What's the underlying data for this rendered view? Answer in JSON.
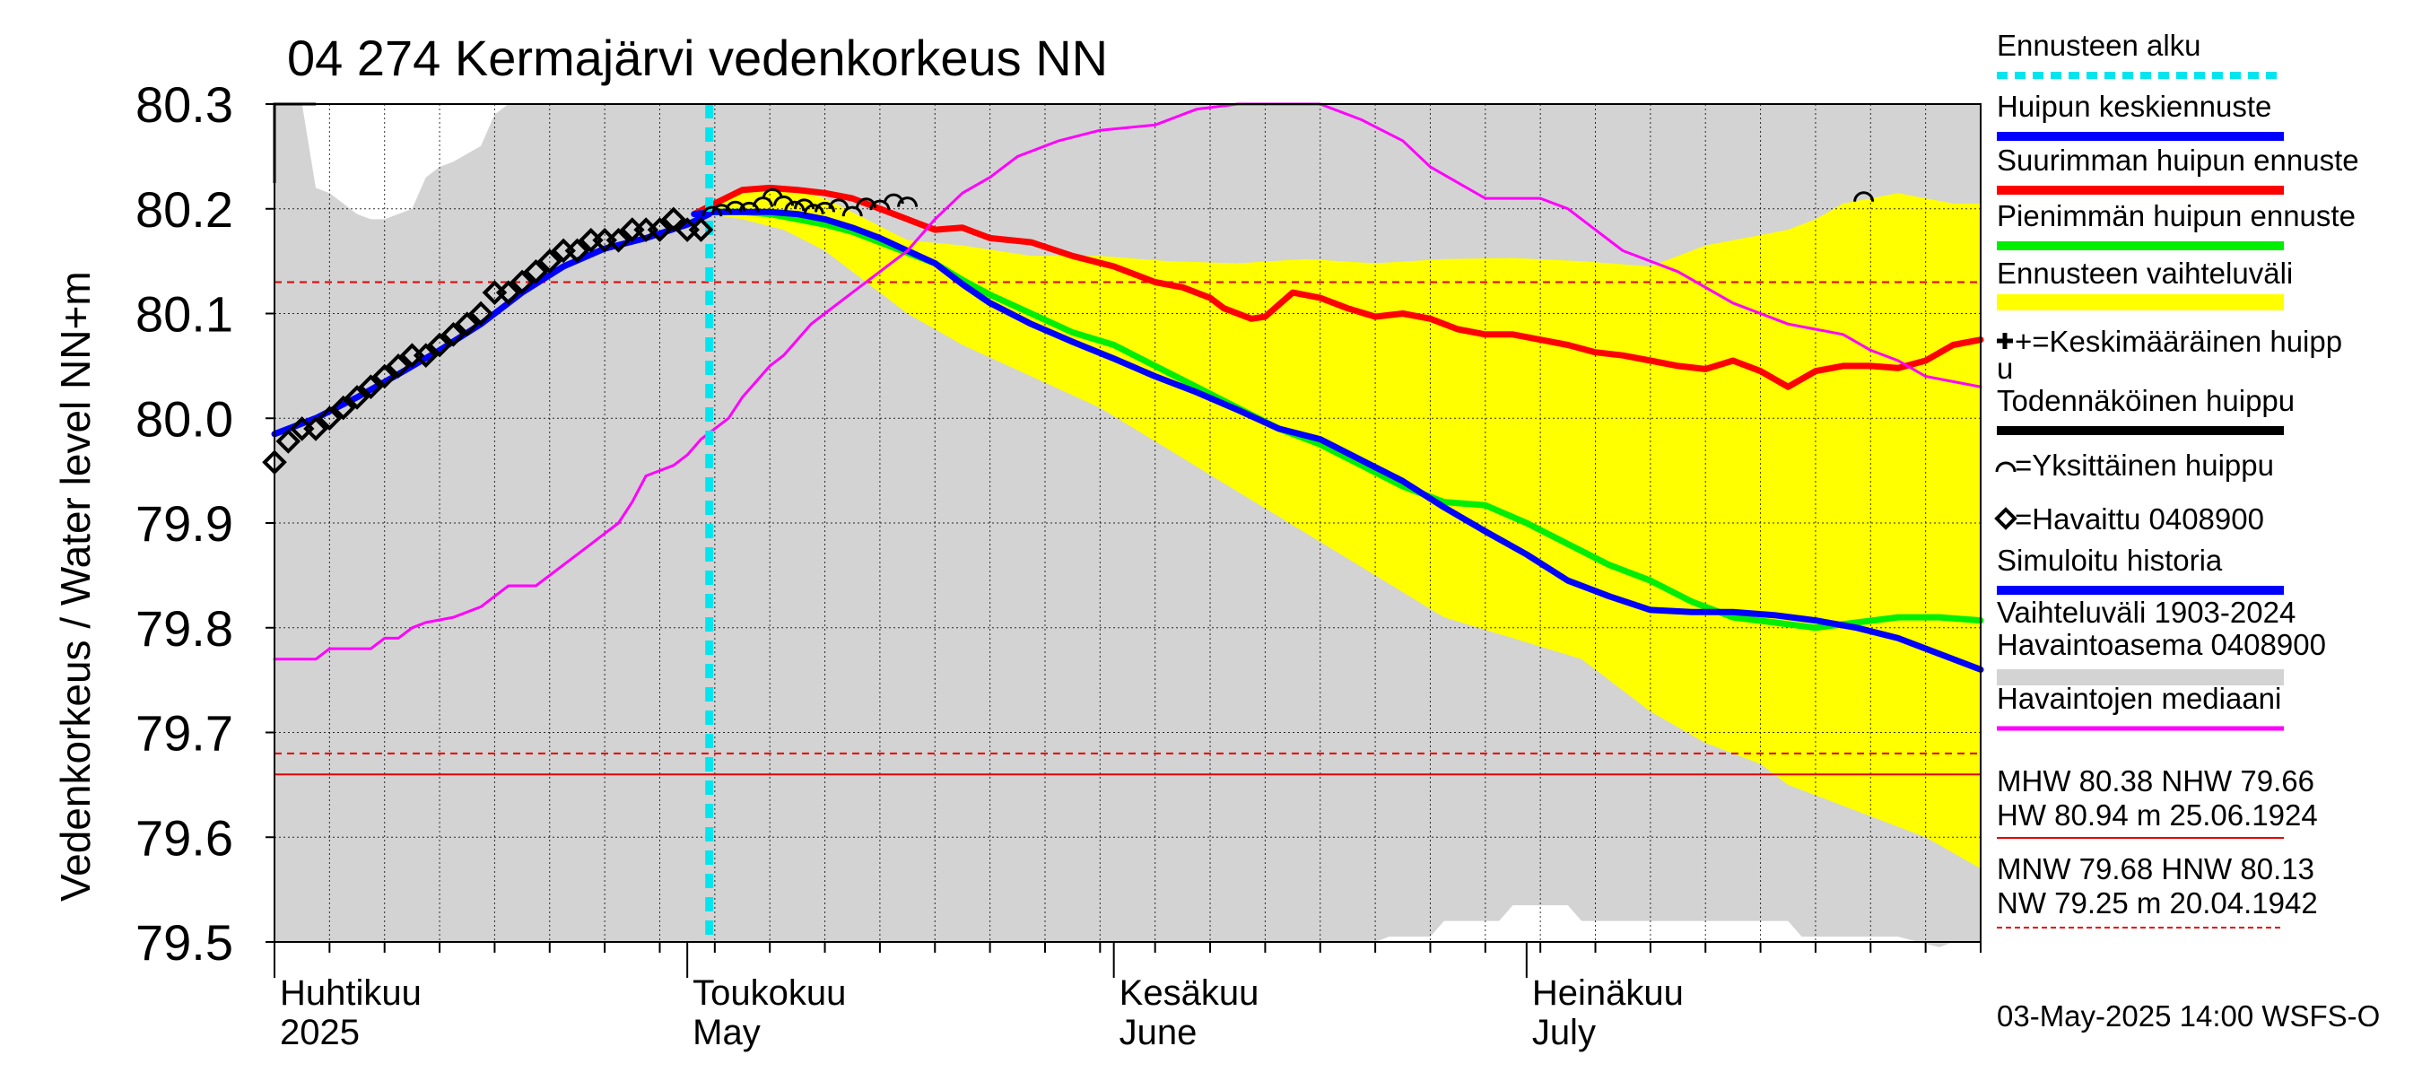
{
  "chart_data": {
    "type": "line",
    "title": "04 274 Kermajärvi vedenkorkeus NN",
    "ylabel": "Vedenkorkeus / Water level   NN+m",
    "ylim": [
      79.5,
      80.3
    ],
    "yticks": [
      "80.3",
      "80.2",
      "80.1",
      "80.0",
      "79.9",
      "79.8",
      "79.7",
      "79.6",
      "79.5"
    ],
    "ytick_values": [
      80.3,
      80.2,
      80.1,
      80.0,
      79.9,
      79.8,
      79.7,
      79.6,
      79.5
    ],
    "xlim_days": [
      0,
      124
    ],
    "x_unit": "days from 1 April 2025",
    "month_labels": [
      {
        "name": "month-april",
        "line1": "Huhtikuu",
        "line2": "2025",
        "day": 0
      },
      {
        "name": "month-may",
        "line1": "Toukokuu",
        "line2": "May",
        "day": 30
      },
      {
        "name": "month-june",
        "line1": "Kesäkuu",
        "line2": "June",
        "day": 61
      },
      {
        "name": "month-july",
        "line1": "Heinäkuu",
        "line2": "July",
        "day": 91
      }
    ],
    "forecast_start_day": 31.6,
    "reference_lines": [
      {
        "name": "nhw-line",
        "value": 80.13,
        "color": "#e60000",
        "style": "dashed"
      },
      {
        "name": "mnw-line",
        "value": 79.68,
        "color": "#e60000",
        "style": "dashed"
      },
      {
        "name": "nhw-solid-line",
        "value": 79.66,
        "color": "#e60000",
        "style": "solid"
      }
    ],
    "series": [
      {
        "name": "Suurimman huipun ennuste",
        "color": "#ff0000",
        "width": 7,
        "x": [
          30.5,
          32,
          34,
          36,
          38,
          40,
          42,
          44,
          46,
          48,
          50,
          52,
          55,
          58,
          61,
          64,
          66,
          68,
          69,
          70,
          71,
          72,
          74,
          76,
          78,
          80,
          82,
          84,
          86,
          88,
          90,
          92,
          94,
          96,
          98,
          100,
          102,
          104,
          106,
          108,
          110,
          112,
          114,
          116,
          118,
          120,
          122,
          124
        ],
        "y": [
          80.195,
          80.205,
          80.218,
          80.22,
          80.218,
          80.215,
          80.21,
          80.2,
          80.19,
          80.18,
          80.182,
          80.172,
          80.168,
          80.155,
          80.145,
          80.13,
          80.125,
          80.115,
          80.105,
          80.1,
          80.095,
          80.097,
          80.12,
          80.115,
          80.105,
          80.097,
          80.1,
          80.095,
          80.085,
          80.08,
          80.08,
          80.075,
          80.07,
          80.063,
          80.06,
          80.055,
          80.05,
          80.047,
          80.055,
          80.045,
          80.03,
          80.045,
          80.05,
          80.05,
          80.048,
          80.055,
          80.07,
          80.075
        ]
      },
      {
        "name": "Pienimmän huipun ennuste",
        "color": "#00ee00",
        "width": 7,
        "x": [
          30.5,
          32,
          34,
          36,
          38,
          40,
          42,
          44,
          46,
          48,
          50,
          52,
          55,
          58,
          61,
          64,
          67,
          70,
          73,
          76,
          79,
          82,
          85,
          88,
          91,
          94,
          97,
          100,
          103,
          106,
          109,
          112,
          115,
          118,
          121,
          124
        ],
        "y": [
          80.195,
          80.197,
          80.197,
          80.195,
          80.19,
          80.185,
          80.178,
          80.168,
          80.158,
          80.148,
          80.132,
          80.118,
          80.1,
          80.082,
          80.07,
          80.05,
          80.03,
          80.01,
          79.99,
          79.975,
          79.955,
          79.935,
          79.92,
          79.917,
          79.9,
          79.88,
          79.86,
          79.845,
          79.825,
          79.81,
          79.805,
          79.8,
          79.805,
          79.81,
          79.81,
          79.807
        ]
      },
      {
        "name": "Huipun keskiennuste",
        "color": "#0000ff",
        "width": 7,
        "x": [
          30.5,
          32,
          34,
          36,
          38,
          40,
          42,
          44,
          46,
          48,
          50,
          52,
          55,
          58,
          61,
          64,
          67,
          70,
          73,
          76,
          79,
          82,
          85,
          88,
          91,
          94,
          97,
          100,
          103,
          106,
          109,
          112,
          115,
          118,
          121,
          124
        ],
        "y": [
          80.195,
          80.197,
          80.197,
          80.197,
          80.195,
          80.19,
          80.182,
          80.172,
          80.16,
          80.148,
          80.128,
          80.11,
          80.09,
          80.073,
          80.057,
          80.04,
          80.025,
          80.008,
          79.99,
          79.98,
          79.96,
          79.94,
          79.915,
          79.892,
          79.87,
          79.845,
          79.83,
          79.817,
          79.815,
          79.815,
          79.812,
          79.807,
          79.8,
          79.79,
          79.775,
          79.76
        ]
      },
      {
        "name": "Simuloitu historia",
        "color": "#0000ff",
        "width": 7,
        "x": [
          0,
          3,
          6,
          9,
          12,
          15,
          18,
          21,
          24,
          27,
          30,
          31.6
        ],
        "y": [
          79.985,
          80.0,
          80.02,
          80.042,
          80.065,
          80.09,
          80.12,
          80.145,
          80.162,
          80.172,
          80.185,
          80.195
        ]
      },
      {
        "name": "Havaintojen mediaani",
        "color": "#ff00ff",
        "width": 3,
        "x": [
          0,
          3,
          4,
          7,
          8,
          9,
          10,
          11,
          13,
          15,
          16,
          17,
          19,
          21,
          23,
          24,
          25,
          26,
          27,
          28,
          29,
          30,
          31,
          32,
          33,
          34,
          35,
          36,
          37,
          38,
          39,
          40,
          42,
          44,
          46,
          48,
          50,
          52,
          54,
          57,
          60,
          64,
          67,
          70,
          73,
          76,
          79,
          82,
          84,
          86,
          88,
          90,
          92,
          94,
          96,
          98,
          100,
          102,
          104,
          106,
          108,
          110,
          112,
          114,
          116,
          118,
          120,
          122,
          124
        ],
        "y": [
          79.77,
          79.77,
          79.78,
          79.78,
          79.79,
          79.79,
          79.8,
          79.805,
          79.81,
          79.82,
          79.83,
          79.84,
          79.84,
          79.86,
          79.88,
          79.89,
          79.9,
          79.92,
          79.945,
          79.95,
          79.955,
          79.965,
          79.98,
          79.99,
          80.0,
          80.02,
          80.035,
          80.05,
          80.06,
          80.075,
          80.09,
          80.1,
          80.12,
          80.14,
          80.16,
          80.19,
          80.215,
          80.23,
          80.25,
          80.265,
          80.275,
          80.28,
          80.295,
          80.3,
          80.3,
          80.3,
          80.285,
          80.265,
          80.24,
          80.225,
          80.21,
          80.21,
          80.21,
          80.2,
          80.18,
          80.16,
          80.15,
          80.14,
          80.125,
          80.11,
          80.1,
          80.09,
          80.085,
          80.08,
          80.065,
          80.055,
          80.04,
          80.035,
          80.03
        ]
      }
    ],
    "variation_band": {
      "name": "Ennusteen vaihteluväli",
      "color": "#ffff00",
      "x": [
        31.6,
        34,
        37,
        40,
        43,
        46,
        50,
        55,
        60,
        65,
        70,
        75,
        80,
        85,
        90,
        95,
        100,
        104,
        108,
        110,
        112,
        114,
        116,
        118,
        120,
        122,
        124
      ],
      "upper": [
        80.2,
        80.22,
        80.222,
        80.21,
        80.19,
        80.17,
        80.165,
        80.155,
        80.155,
        80.15,
        80.148,
        80.152,
        80.148,
        80.152,
        80.153,
        80.15,
        80.145,
        80.165,
        80.175,
        80.18,
        80.19,
        80.205,
        80.21,
        80.215,
        80.21,
        80.205,
        80.205
      ],
      "lower": [
        80.195,
        80.19,
        80.18,
        80.16,
        80.13,
        80.1,
        80.07,
        80.04,
        80.01,
        79.97,
        79.93,
        79.89,
        79.85,
        79.81,
        79.79,
        79.77,
        79.72,
        79.69,
        79.67,
        79.65,
        79.64,
        79.63,
        79.62,
        79.61,
        79.6,
        79.585,
        79.57
      ]
    },
    "historical_range": {
      "name": "Vaihteluväli 1903-2024 Havaintoasema 0408900",
      "color": "#d3d3d3",
      "x": [
        0,
        2,
        3,
        4,
        5,
        6,
        7,
        8,
        10,
        11,
        12,
        13,
        15,
        16,
        17,
        124
      ],
      "upper": [
        80.3,
        80.3,
        80.22,
        80.215,
        80.205,
        80.195,
        80.19,
        80.19,
        80.2,
        80.23,
        80.24,
        80.245,
        80.26,
        80.29,
        80.3,
        80.3
      ],
      "lower_x": [
        0,
        75,
        80,
        81,
        84,
        85,
        89,
        90,
        94,
        95,
        110,
        111,
        118,
        121,
        122,
        124
      ],
      "lower": [
        79.5,
        79.5,
        79.5,
        79.505,
        79.505,
        79.52,
        79.52,
        79.535,
        79.535,
        79.52,
        79.52,
        79.505,
        79.505,
        79.495,
        79.5,
        79.5
      ]
    },
    "observed": {
      "name": "Havaittu 0408900",
      "x": [
        0,
        1,
        2,
        3,
        4,
        5,
        6,
        7,
        8,
        9,
        10,
        11,
        12,
        13,
        14,
        15,
        16,
        17,
        18,
        19,
        20,
        21,
        22,
        23,
        24,
        25,
        26,
        27,
        28,
        29,
        30,
        31
      ],
      "y": [
        79.958,
        79.978,
        79.99,
        79.99,
        80.0,
        80.01,
        80.02,
        80.03,
        80.04,
        80.05,
        80.06,
        80.06,
        80.07,
        80.08,
        80.09,
        80.1,
        80.12,
        80.12,
        80.13,
        80.14,
        80.15,
        80.16,
        80.16,
        80.17,
        80.17,
        80.17,
        80.18,
        80.18,
        80.18,
        80.19,
        80.18,
        80.18
      ]
    },
    "single_peaks": {
      "name": "Yksittäinen huippu",
      "x": [
        31.8,
        32.5,
        33.5,
        34.5,
        35.5,
        36.2,
        37,
        37.8,
        38.5,
        39.2,
        40,
        41,
        42,
        43,
        44,
        45,
        46,
        115.5
      ],
      "y": [
        80.198,
        80.2,
        80.203,
        80.202,
        80.207,
        80.215,
        80.208,
        80.203,
        80.205,
        80.2,
        80.202,
        80.205,
        80.198,
        80.206,
        80.204,
        80.21,
        80.207,
        80.212
      ]
    },
    "legend_placement": "right",
    "legend": [
      {
        "name": "Ennusteen alku",
        "swatch": "dashed",
        "color": "#00e5ee"
      },
      {
        "name": "Huipun keskiennuste",
        "swatch": "line",
        "color": "#0000ff"
      },
      {
        "name": "Suurimman huipun ennuste",
        "swatch": "line",
        "color": "#ff0000"
      },
      {
        "name": "Pienimmän huipun ennuste",
        "swatch": "line",
        "color": "#00ee00"
      },
      {
        "name": "Ennusteen vaihteluväli",
        "swatch": "band",
        "color": "#ffff00"
      },
      {
        "name": "+=Keskimääräinen huipp",
        "line2": "u",
        "swatch": "none",
        "color": "#000000"
      },
      {
        "name": "Todennäköinen huippu",
        "swatch": "line",
        "color": "#000000"
      },
      {
        "name": "=Yksittäinen huippu",
        "swatch": "none",
        "color": "#000000"
      },
      {
        "name": "=Havaittu 0408900",
        "swatch": "none",
        "color": "#000000"
      },
      {
        "name": "Simuloitu historia",
        "swatch": "line",
        "color": "#0000ff"
      },
      {
        "name": "Vaihteluväli 1903-2024",
        "line2": " Havaintoasema 0408900",
        "swatch": "band",
        "color": "#d3d3d3"
      },
      {
        "name": "Havaintojen mediaani",
        "swatch": "thin",
        "color": "#ff00ff"
      }
    ],
    "stats_block_1": {
      "line1": "MHW  80.38 NHW  79.66",
      "line2": "HW  80.94 m 25.06.1924",
      "underline_color": "#e60000"
    },
    "stats_block_2": {
      "line1": "MNW  79.68 HNW  80.13",
      "line2": "NW  79.25 m 20.04.1942",
      "underline_color": "#e60000"
    },
    "footer": "03-May-2025 14:00 WSFS-O"
  }
}
